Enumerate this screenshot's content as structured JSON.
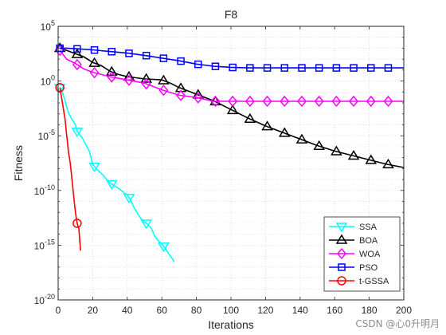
{
  "chart_data": {
    "type": "line",
    "title": "F8",
    "xlabel": "Iterations",
    "ylabel": "Fitness",
    "xlim": [
      0,
      200
    ],
    "ylim_log10": [
      -20,
      5
    ],
    "yscale": "log",
    "grid": true,
    "legend_location": "bottom-right",
    "x_ticks": [
      0,
      20,
      40,
      60,
      80,
      100,
      120,
      140,
      160,
      180,
      200
    ],
    "x_tick_labels": [
      "0",
      "20",
      "40",
      "60",
      "80",
      "100",
      "120",
      "140",
      "160",
      "180",
      "200"
    ],
    "y_ticks": [
      {
        "exp": 5,
        "base": "10",
        "sup": "5"
      },
      {
        "exp": 0,
        "base": "10",
        "sup": "0"
      },
      {
        "exp": -5,
        "base": "10",
        "sup": "-5"
      },
      {
        "exp": -10,
        "base": "10",
        "sup": "-10"
      },
      {
        "exp": -15,
        "base": "10",
        "sup": "-15"
      },
      {
        "exp": -20,
        "base": "10",
        "sup": "-20"
      }
    ],
    "series": [
      {
        "name": "SSA",
        "color": "#00ffff",
        "marker": "triangle-down",
        "x": [
          1,
          2,
          3,
          4,
          5,
          6,
          8,
          10,
          11,
          12,
          14,
          16,
          18,
          20,
          22,
          24,
          26,
          28,
          30,
          32,
          35,
          38,
          40,
          42,
          44,
          46,
          48,
          50,
          52,
          54,
          56,
          58,
          60,
          62,
          64,
          66,
          67
        ],
        "y_log10": [
          -0.6,
          -0.8,
          -1.3,
          -1.8,
          -2.4,
          -2.9,
          -3.5,
          -4.0,
          -4.6,
          -4.8,
          -5.2,
          -5.8,
          -6.4,
          -7.6,
          -8.0,
          -8.3,
          -8.6,
          -9.0,
          -9.3,
          -9.5,
          -9.8,
          -10.2,
          -10.4,
          -10.9,
          -11.6,
          -12.1,
          -12.6,
          -12.9,
          -13.1,
          -13.5,
          -14.2,
          -14.6,
          -14.9,
          -15.3,
          -15.8,
          -16.2,
          -16.5
        ],
        "marker_x": [
          1,
          11,
          21,
          31,
          41,
          51,
          61
        ]
      },
      {
        "name": "BOA",
        "color": "#000000",
        "marker": "triangle-up",
        "x": [
          1,
          5,
          10,
          15,
          20,
          25,
          30,
          35,
          40,
          45,
          50,
          55,
          60,
          65,
          70,
          75,
          80,
          85,
          90,
          95,
          100,
          110,
          120,
          130,
          140,
          150,
          160,
          170,
          180,
          190,
          200
        ],
        "y_log10": [
          3.0,
          2.8,
          2.5,
          2.2,
          1.7,
          1.4,
          0.9,
          0.6,
          0.4,
          0.3,
          0.2,
          0.15,
          0.1,
          -0.2,
          -0.6,
          -0.9,
          -1.2,
          -1.5,
          -1.8,
          -2.2,
          -2.6,
          -3.4,
          -4.1,
          -4.7,
          -5.3,
          -5.9,
          -6.4,
          -6.8,
          -7.2,
          -7.6,
          -7.9
        ],
        "marker_x": [
          1,
          11,
          21,
          31,
          41,
          51,
          61,
          71,
          81,
          91,
          101,
          111,
          121,
          131,
          141,
          151,
          161,
          171,
          181,
          191
        ]
      },
      {
        "name": "WOA",
        "color": "#ff00ff",
        "marker": "diamond",
        "x": [
          1,
          5,
          10,
          15,
          20,
          25,
          30,
          35,
          40,
          50,
          60,
          70,
          80,
          90,
          100,
          120,
          140,
          160,
          180,
          200
        ],
        "y_log10": [
          2.8,
          2.0,
          1.6,
          1.1,
          0.8,
          0.6,
          0.4,
          0.25,
          0.1,
          -0.2,
          -0.8,
          -1.3,
          -1.5,
          -1.85,
          -1.85,
          -1.85,
          -1.85,
          -1.85,
          -1.85,
          -1.85
        ],
        "marker_x": [
          1,
          11,
          21,
          31,
          41,
          51,
          61,
          71,
          81,
          91,
          101,
          111,
          121,
          131,
          141,
          151,
          161,
          171,
          181,
          191
        ]
      },
      {
        "name": "PSO",
        "color": "#0000ff",
        "marker": "square",
        "x": [
          1,
          5,
          10,
          20,
          30,
          40,
          50,
          60,
          70,
          80,
          90,
          100,
          110,
          120,
          140,
          160,
          180,
          200
        ],
        "y_log10": [
          3.0,
          3.0,
          2.95,
          2.85,
          2.7,
          2.55,
          2.35,
          2.1,
          1.85,
          1.55,
          1.35,
          1.25,
          1.2,
          1.2,
          1.2,
          1.2,
          1.2,
          1.2
        ],
        "marker_x": [
          1,
          11,
          21,
          31,
          41,
          51,
          61,
          71,
          81,
          91,
          101,
          111,
          121,
          131,
          141,
          151,
          161,
          171,
          181,
          191
        ]
      },
      {
        "name": "t-GSSA",
        "color": "#ff0000",
        "marker": "circle",
        "x": [
          1,
          2,
          3,
          4,
          5,
          6,
          7,
          8,
          9,
          10,
          11,
          12,
          13
        ],
        "y_log10": [
          -0.6,
          -1.5,
          -2.5,
          -3.5,
          -5.0,
          -6.5,
          -7.5,
          -9.0,
          -10.5,
          -12.0,
          -13.0,
          -13.5,
          -15.5
        ],
        "marker_x": [
          1,
          11
        ]
      }
    ]
  },
  "watermark": "CSDN @心0升明月"
}
